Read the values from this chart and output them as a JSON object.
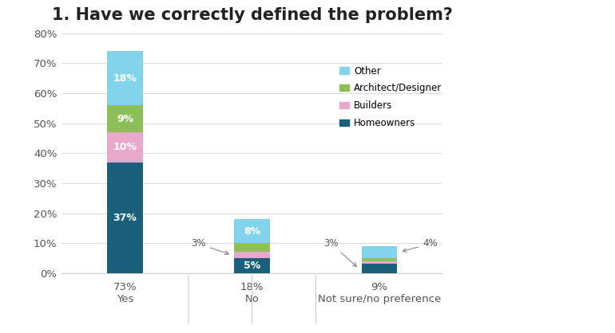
{
  "title": "1. Have we correctly defined the problem?",
  "categories": [
    "Yes",
    "No",
    "Not sure/no preference"
  ],
  "category_totals": [
    "73%",
    "18%",
    "9%"
  ],
  "segments": {
    "Homeowners": [
      37,
      5,
      3
    ],
    "Builders": [
      10,
      2,
      1
    ],
    "Architect/Designer": [
      9,
      3,
      1
    ],
    "Other": [
      18,
      8,
      4
    ]
  },
  "segment_labels": {
    "Homeowners": [
      "37%",
      "5%",
      ""
    ],
    "Builders": [
      "10%",
      "",
      ""
    ],
    "Architect/Designer": [
      "9%",
      "",
      ""
    ],
    "Other": [
      "18%",
      "8%",
      ""
    ]
  },
  "colors": {
    "Homeowners": "#1b607a",
    "Builders": "#e8a8cc",
    "Architect/Designer": "#8ebe5a",
    "Other": "#82d4ea"
  },
  "ylim": [
    0,
    80
  ],
  "yticks": [
    0,
    10,
    20,
    30,
    40,
    50,
    60,
    70,
    80
  ],
  "ytick_labels": [
    "0%",
    "10%",
    "20%",
    "30%",
    "40%",
    "50%",
    "60%",
    "70%",
    "80%"
  ],
  "background_color": "#ffffff",
  "grid_color": "#dddddd",
  "title_fontsize": 15,
  "bar_width": 0.28,
  "annotation_3pct_no": "3%",
  "annotation_3pct_ns": "3%",
  "annotation_4pct_ns": "4%"
}
